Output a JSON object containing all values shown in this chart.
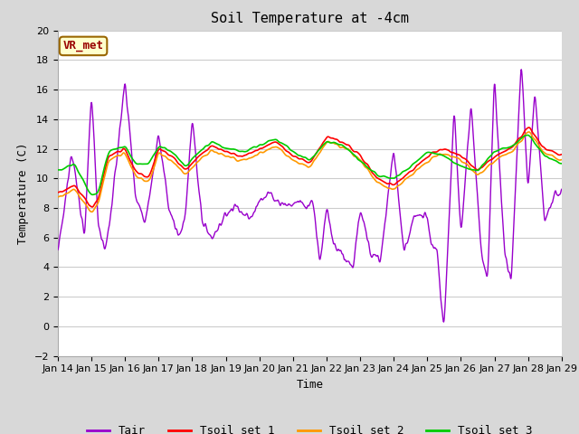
{
  "title": "Soil Temperature at -4cm",
  "xlabel": "Time",
  "ylabel": "Temperature (C)",
  "ylim": [
    -2,
    20
  ],
  "yticks": [
    -2,
    0,
    2,
    4,
    6,
    8,
    10,
    12,
    14,
    16,
    18,
    20
  ],
  "xtick_labels": [
    "Jan 14",
    "Jan 15",
    "Jan 16",
    "Jan 17",
    "Jan 18",
    "Jan 19",
    "Jan 20",
    "Jan 21",
    "Jan 22",
    "Jan 23",
    "Jan 24",
    "Jan 25",
    "Jan 26",
    "Jan 27",
    "Jan 28",
    "Jan 29"
  ],
  "colors": {
    "Tair": "#9900cc",
    "Tsoil1": "#ff0000",
    "Tsoil2": "#ff9900",
    "Tsoil3": "#00cc00"
  },
  "figure_bg": "#d8d8d8",
  "plot_bg": "#ffffff",
  "grid_color": "#cccccc",
  "annotation_text": "VR_met",
  "annotation_color": "#990000",
  "annotation_bg": "#ffffcc",
  "annotation_border": "#996600",
  "legend_labels": [
    "Tair",
    "Tsoil set 1",
    "Tsoil set 2",
    "Tsoil set 3"
  ],
  "title_fontsize": 11,
  "axis_label_fontsize": 9,
  "tick_fontsize": 8,
  "legend_fontsize": 9
}
